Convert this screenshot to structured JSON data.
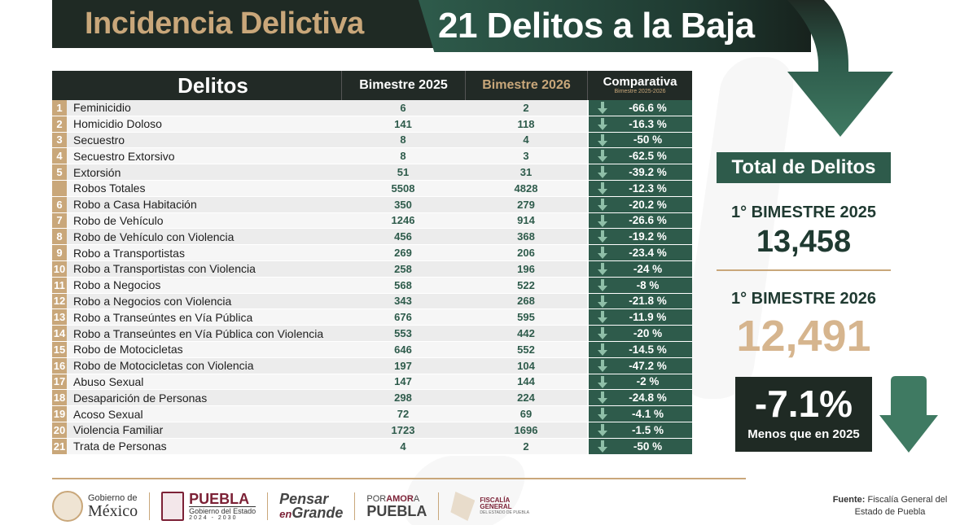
{
  "header": {
    "left_title": "Incidencia Delictiva",
    "right_title": "21 Delitos a la Baja"
  },
  "table": {
    "headers": {
      "delitos": "Delitos",
      "bimestre_2025": "Bimestre 2025",
      "bimestre_2026": "Bimestre 2026",
      "comparativa": "Comparativa",
      "comparativa_sub": "Bimestre 2025-2026"
    },
    "rows": [
      {
        "num": "1",
        "name": "Feminicidio",
        "v2025": "6",
        "v2026": "2",
        "comp": "-66.6 %"
      },
      {
        "num": "2",
        "name": "Homicidio Doloso",
        "v2025": "141",
        "v2026": "118",
        "comp": "-16.3 %"
      },
      {
        "num": "3",
        "name": "Secuestro",
        "v2025": "8",
        "v2026": "4",
        "comp": "-50 %"
      },
      {
        "num": "4",
        "name": "Secuestro Extorsivo",
        "v2025": "8",
        "v2026": "3",
        "comp": "-62.5 %"
      },
      {
        "num": "5",
        "name": "Extorsión",
        "v2025": "51",
        "v2026": "31",
        "comp": "-39.2 %"
      },
      {
        "num": "",
        "name": "Robos Totales",
        "v2025": "5508",
        "v2026": "4828",
        "comp": "-12.3 %"
      },
      {
        "num": "6",
        "name": "Robo a Casa Habitación",
        "v2025": "350",
        "v2026": "279",
        "comp": "-20.2 %"
      },
      {
        "num": "7",
        "name": "Robo de Vehículo",
        "v2025": "1246",
        "v2026": "914",
        "comp": "-26.6 %"
      },
      {
        "num": "8",
        "name": "Robo de Vehículo con Violencia",
        "v2025": "456",
        "v2026": "368",
        "comp": "-19.2 %"
      },
      {
        "num": "9",
        "name": "Robo a Transportistas",
        "v2025": "269",
        "v2026": "206",
        "comp": "-23.4 %"
      },
      {
        "num": "10",
        "name": "Robo a Transportistas con Violencia",
        "v2025": "258",
        "v2026": "196",
        "comp": "-24 %"
      },
      {
        "num": "11",
        "name": "Robo a Negocios",
        "v2025": "568",
        "v2026": "522",
        "comp": "-8 %"
      },
      {
        "num": "12",
        "name": "Robo a Negocios con Violencia",
        "v2025": "343",
        "v2026": "268",
        "comp": "-21.8 %"
      },
      {
        "num": "13",
        "name": "Robo a Transeúntes en Vía Pública",
        "v2025": "676",
        "v2026": "595",
        "comp": "-11.9 %"
      },
      {
        "num": "14",
        "name": "Robo a Transeúntes en Vía Pública con Violencia",
        "v2025": "553",
        "v2026": "442",
        "comp": "-20 %"
      },
      {
        "num": "15",
        "name": "Robo de Motocicletas",
        "v2025": "646",
        "v2026": "552",
        "comp": "-14.5 %"
      },
      {
        "num": "16",
        "name": "Robo de Motocicletas con Violencia",
        "v2025": "197",
        "v2026": "104",
        "comp": "-47.2 %"
      },
      {
        "num": "17",
        "name": "Abuso Sexual",
        "v2025": "147",
        "v2026": "144",
        "comp": "-2 %"
      },
      {
        "num": "18",
        "name": "Desaparición de Personas",
        "v2025": "298",
        "v2026": "224",
        "comp": "-24.8 %"
      },
      {
        "num": "19",
        "name": "Acoso Sexual",
        "v2025": "72",
        "v2026": "69",
        "comp": "-4.1 %"
      },
      {
        "num": "20",
        "name": "Violencia Familiar",
        "v2025": "1723",
        "v2026": "1696",
        "comp": "-1.5 %"
      },
      {
        "num": "21",
        "name": "Trata de Personas",
        "v2025": "4",
        "v2026": "2",
        "comp": "-50 %"
      }
    ]
  },
  "summary": {
    "total_title": "Total de Delitos",
    "label_2025": "1° BIMESTRE 2025",
    "value_2025": "13,458",
    "label_2026": "1° BIMESTRE 2026",
    "value_2026": "12,491",
    "change_pct": "-7.1%",
    "change_caption": "Menos que en 2025"
  },
  "footer": {
    "gm_small": "Gobierno de",
    "gm_big": "México",
    "puebla_big": "PUEBLA",
    "puebla_small": "Gobierno del Estado",
    "puebla_years": "2024 - 2030",
    "pensar_1": "Pensar",
    "pensar_en": "en",
    "pensar_2": "Grande",
    "poramor_1a": "POR",
    "poramor_1b": "AMOR",
    "poramor_1c": "A",
    "poramor_2": "PUEBLA",
    "fiscalia_1": "FISCALÍA",
    "fiscalia_2": "GENERAL",
    "fiscalia_3": "DEL ESTADO DE PUEBLA",
    "fuente_label": "Fuente:",
    "fuente_text": "Fiscalía General del Estado de Puebla"
  },
  "colors": {
    "dark_green": "#2e5b4b",
    "dark": "#1f2a24",
    "gold": "#c9a77a",
    "maroon": "#7c2136"
  },
  "icons": [
    "down-arrow-icon",
    "gobierno-mexico-seal-icon",
    "puebla-shield-icon",
    "fiscalia-logo-icon"
  ]
}
